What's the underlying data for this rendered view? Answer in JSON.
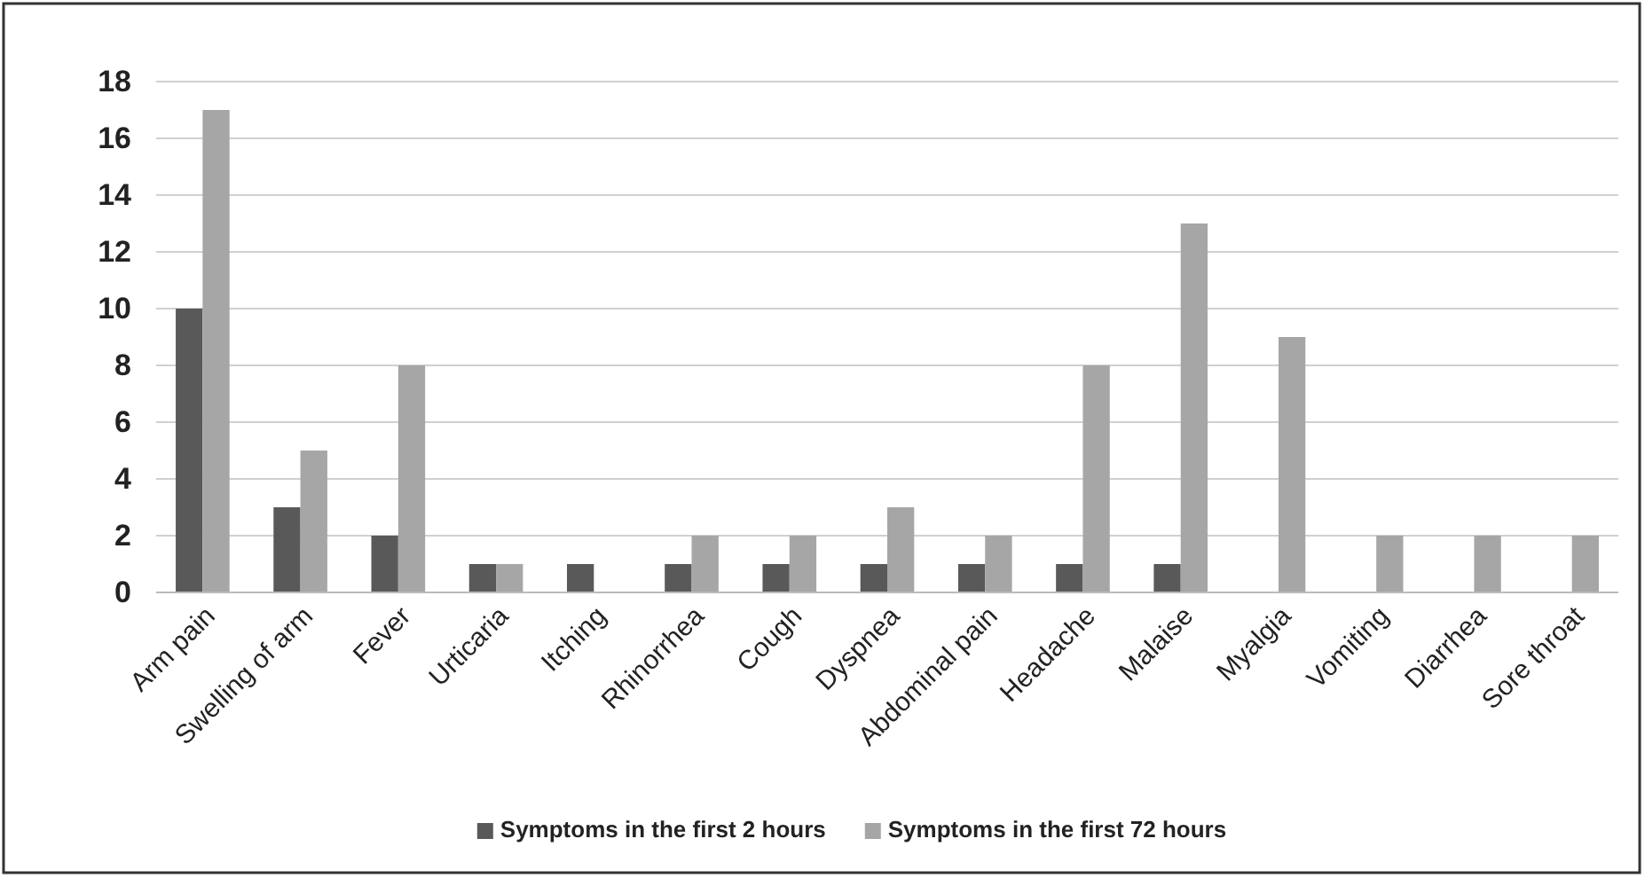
{
  "chart_data": {
    "type": "bar",
    "categories": [
      "Arm pain",
      "Swelling of arm",
      "Fever",
      "Urticaria",
      "Itching",
      "Rhinorrhea",
      "Cough",
      "Dyspnea",
      "Abdominal pain",
      "Headache",
      "Malaise",
      "Myalgia",
      "Vomiting",
      "Diarrhea",
      "Sore throat"
    ],
    "series": [
      {
        "name": "Symptoms in the first 2 hours",
        "color": "#595959",
        "values": [
          10,
          3,
          2,
          1,
          1,
          1,
          1,
          1,
          1,
          1,
          1,
          0,
          0,
          0,
          0
        ]
      },
      {
        "name": "Symptoms in the first 72 hours",
        "color": "#a6a6a6",
        "values": [
          17,
          5,
          8,
          1,
          0,
          2,
          2,
          3,
          2,
          8,
          13,
          9,
          2,
          2,
          2
        ]
      }
    ],
    "ylim": [
      0,
      18
    ],
    "yticks": [
      0,
      2,
      4,
      6,
      8,
      10,
      12,
      14,
      16,
      18
    ],
    "grid": "y",
    "legend": "bottom"
  }
}
